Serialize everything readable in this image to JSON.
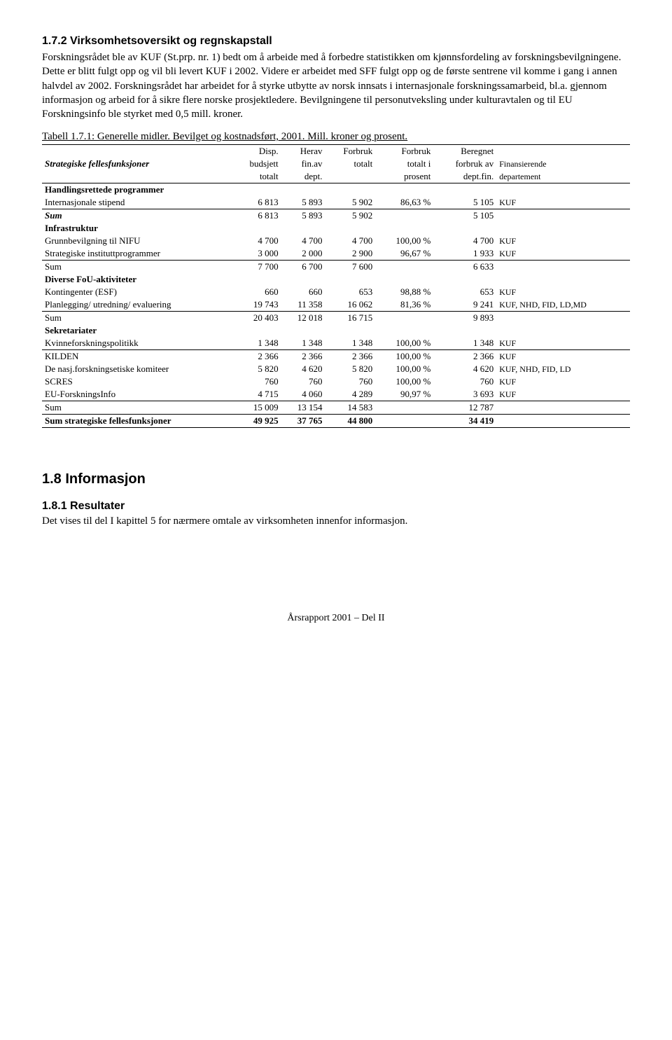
{
  "section1": {
    "heading": "1.7.2  Virksomhetsoversikt og regnskapstall",
    "paragraph": "Forskningsrådet ble av KUF (St.prp. nr. 1) bedt om å arbeide med å forbedre statistikken om kjønnsfordeling av forskningsbevilgningene. Dette er blitt fulgt opp og vil bli levert KUF i 2002. Videre er arbeidet med SFF fulgt opp og de første sentrene vil komme i gang i annen halvdel av 2002. Forskningsrådet har arbeidet for å styrke utbytte av norsk innsats i internasjonale forskningssamarbeid, bl.a. gjennom informasjon og arbeid for å sikre flere norske prosjektledere. Bevilgningene til personutveksling under kulturavtalen og til EU Forskningsinfo ble styrket med 0,5 mill. kroner."
  },
  "table": {
    "caption": "Tabell 1.7.1: Generelle midler. Bevilget og kostnadsført, 2001. Mill. kroner og prosent.",
    "header_left": "Strategiske fellesfunksjoner",
    "h_disp1": "Disp.",
    "h_disp2": "budsjett",
    "h_disp3": "totalt",
    "h_her1": "Herav",
    "h_her2": "fin.av",
    "h_her3": "dept.",
    "h_for1": "Forbruk",
    "h_for2": "totalt",
    "h_fp1": "Forbruk",
    "h_fp2": "totalt i",
    "h_fp3": "prosent",
    "h_ber1": "Beregnet",
    "h_ber2": "forbruk av",
    "h_ber3": "dept.fin.",
    "h_fin2": "Finansierende",
    "h_fin3": "departement",
    "sec1": "Handlingsrettede programmer",
    "r1": {
      "label": "Internasjonale stipend",
      "c1": "6 813",
      "c2": "5 893",
      "c3": "5 902",
      "c4": "86,63 %",
      "c5": "5 105",
      "fin": "KUF"
    },
    "sum1": {
      "label": "Sum",
      "c1": "6 813",
      "c2": "5 893",
      "c3": "5 902",
      "c5": "5 105"
    },
    "sec2": "Infrastruktur",
    "r2a": {
      "label": "Grunnbevilgning til NIFU",
      "c1": "4 700",
      "c2": "4 700",
      "c3": "4 700",
      "c4": "100,00 %",
      "c5": "4 700",
      "fin": "KUF"
    },
    "r2b": {
      "label": "Strategiske instituttprogrammer",
      "c1": "3 000",
      "c2": "2 000",
      "c3": "2 900",
      "c4": "96,67 %",
      "c5": "1 933",
      "fin": "KUF"
    },
    "sum2": {
      "label": "Sum",
      "c1": "7 700",
      "c2": "6 700",
      "c3": "7 600",
      "c5": "6 633"
    },
    "sec3": "Diverse FoU-aktiviteter",
    "r3a": {
      "label": "Kontingenter (ESF)",
      "c1": "660",
      "c2": "660",
      "c3": "653",
      "c4": "98,88 %",
      "c5": "653",
      "fin": "KUF"
    },
    "r3b": {
      "label": "Planlegging/ utredning/ evaluering",
      "c1": "19 743",
      "c2": "11 358",
      "c3": "16 062",
      "c4": "81,36 %",
      "c5": "9 241",
      "fin": "KUF, NHD, FID, LD,MD"
    },
    "sum3": {
      "label": "Sum",
      "c1": "20 403",
      "c2": "12 018",
      "c3": "16 715",
      "c5": "9 893"
    },
    "sec4": "Sekretariater",
    "r4a": {
      "label": "Kvinneforskningspolitikk",
      "c1": "1 348",
      "c2": "1 348",
      "c3": "1 348",
      "c4": "100,00 %",
      "c5": "1 348",
      "fin": "KUF"
    },
    "r4b": {
      "label": "KILDEN",
      "c1": "2 366",
      "c2": "2 366",
      "c3": "2 366",
      "c4": "100,00 %",
      "c5": "2 366",
      "fin": "KUF"
    },
    "r4c": {
      "label": "De nasj.forskningsetiske komiteer",
      "c1": "5 820",
      "c2": "4 620",
      "c3": "5 820",
      "c4": "100,00 %",
      "c5": "4 620",
      "fin": "KUF, NHD, FID, LD"
    },
    "r4d": {
      "label": "SCRES",
      "c1": "760",
      "c2": "760",
      "c3": "760",
      "c4": "100,00 %",
      "c5": "760",
      "fin": "KUF"
    },
    "r4e": {
      "label": "EU-ForskningsInfo",
      "c1": "4 715",
      "c2": "4 060",
      "c3": "4 289",
      "c4": "90,97 %",
      "c5": "3 693",
      "fin": "KUF"
    },
    "sum4": {
      "label": "Sum",
      "c1": "15 009",
      "c2": "13 154",
      "c3": "14 583",
      "c5": "12 787"
    },
    "total": {
      "label": "Sum strategiske fellesfunksjoner",
      "c1": "49 925",
      "c2": "37 765",
      "c3": "44 800",
      "c5": "34 419"
    }
  },
  "section2": {
    "heading": "1.8   Informasjon",
    "subheading": "1.8.1  Resultater",
    "paragraph": "Det vises til del I kapittel 5 for nærmere omtale av virksomheten innenfor informasjon."
  },
  "footer": "Årsrapport 2001 – Del II"
}
